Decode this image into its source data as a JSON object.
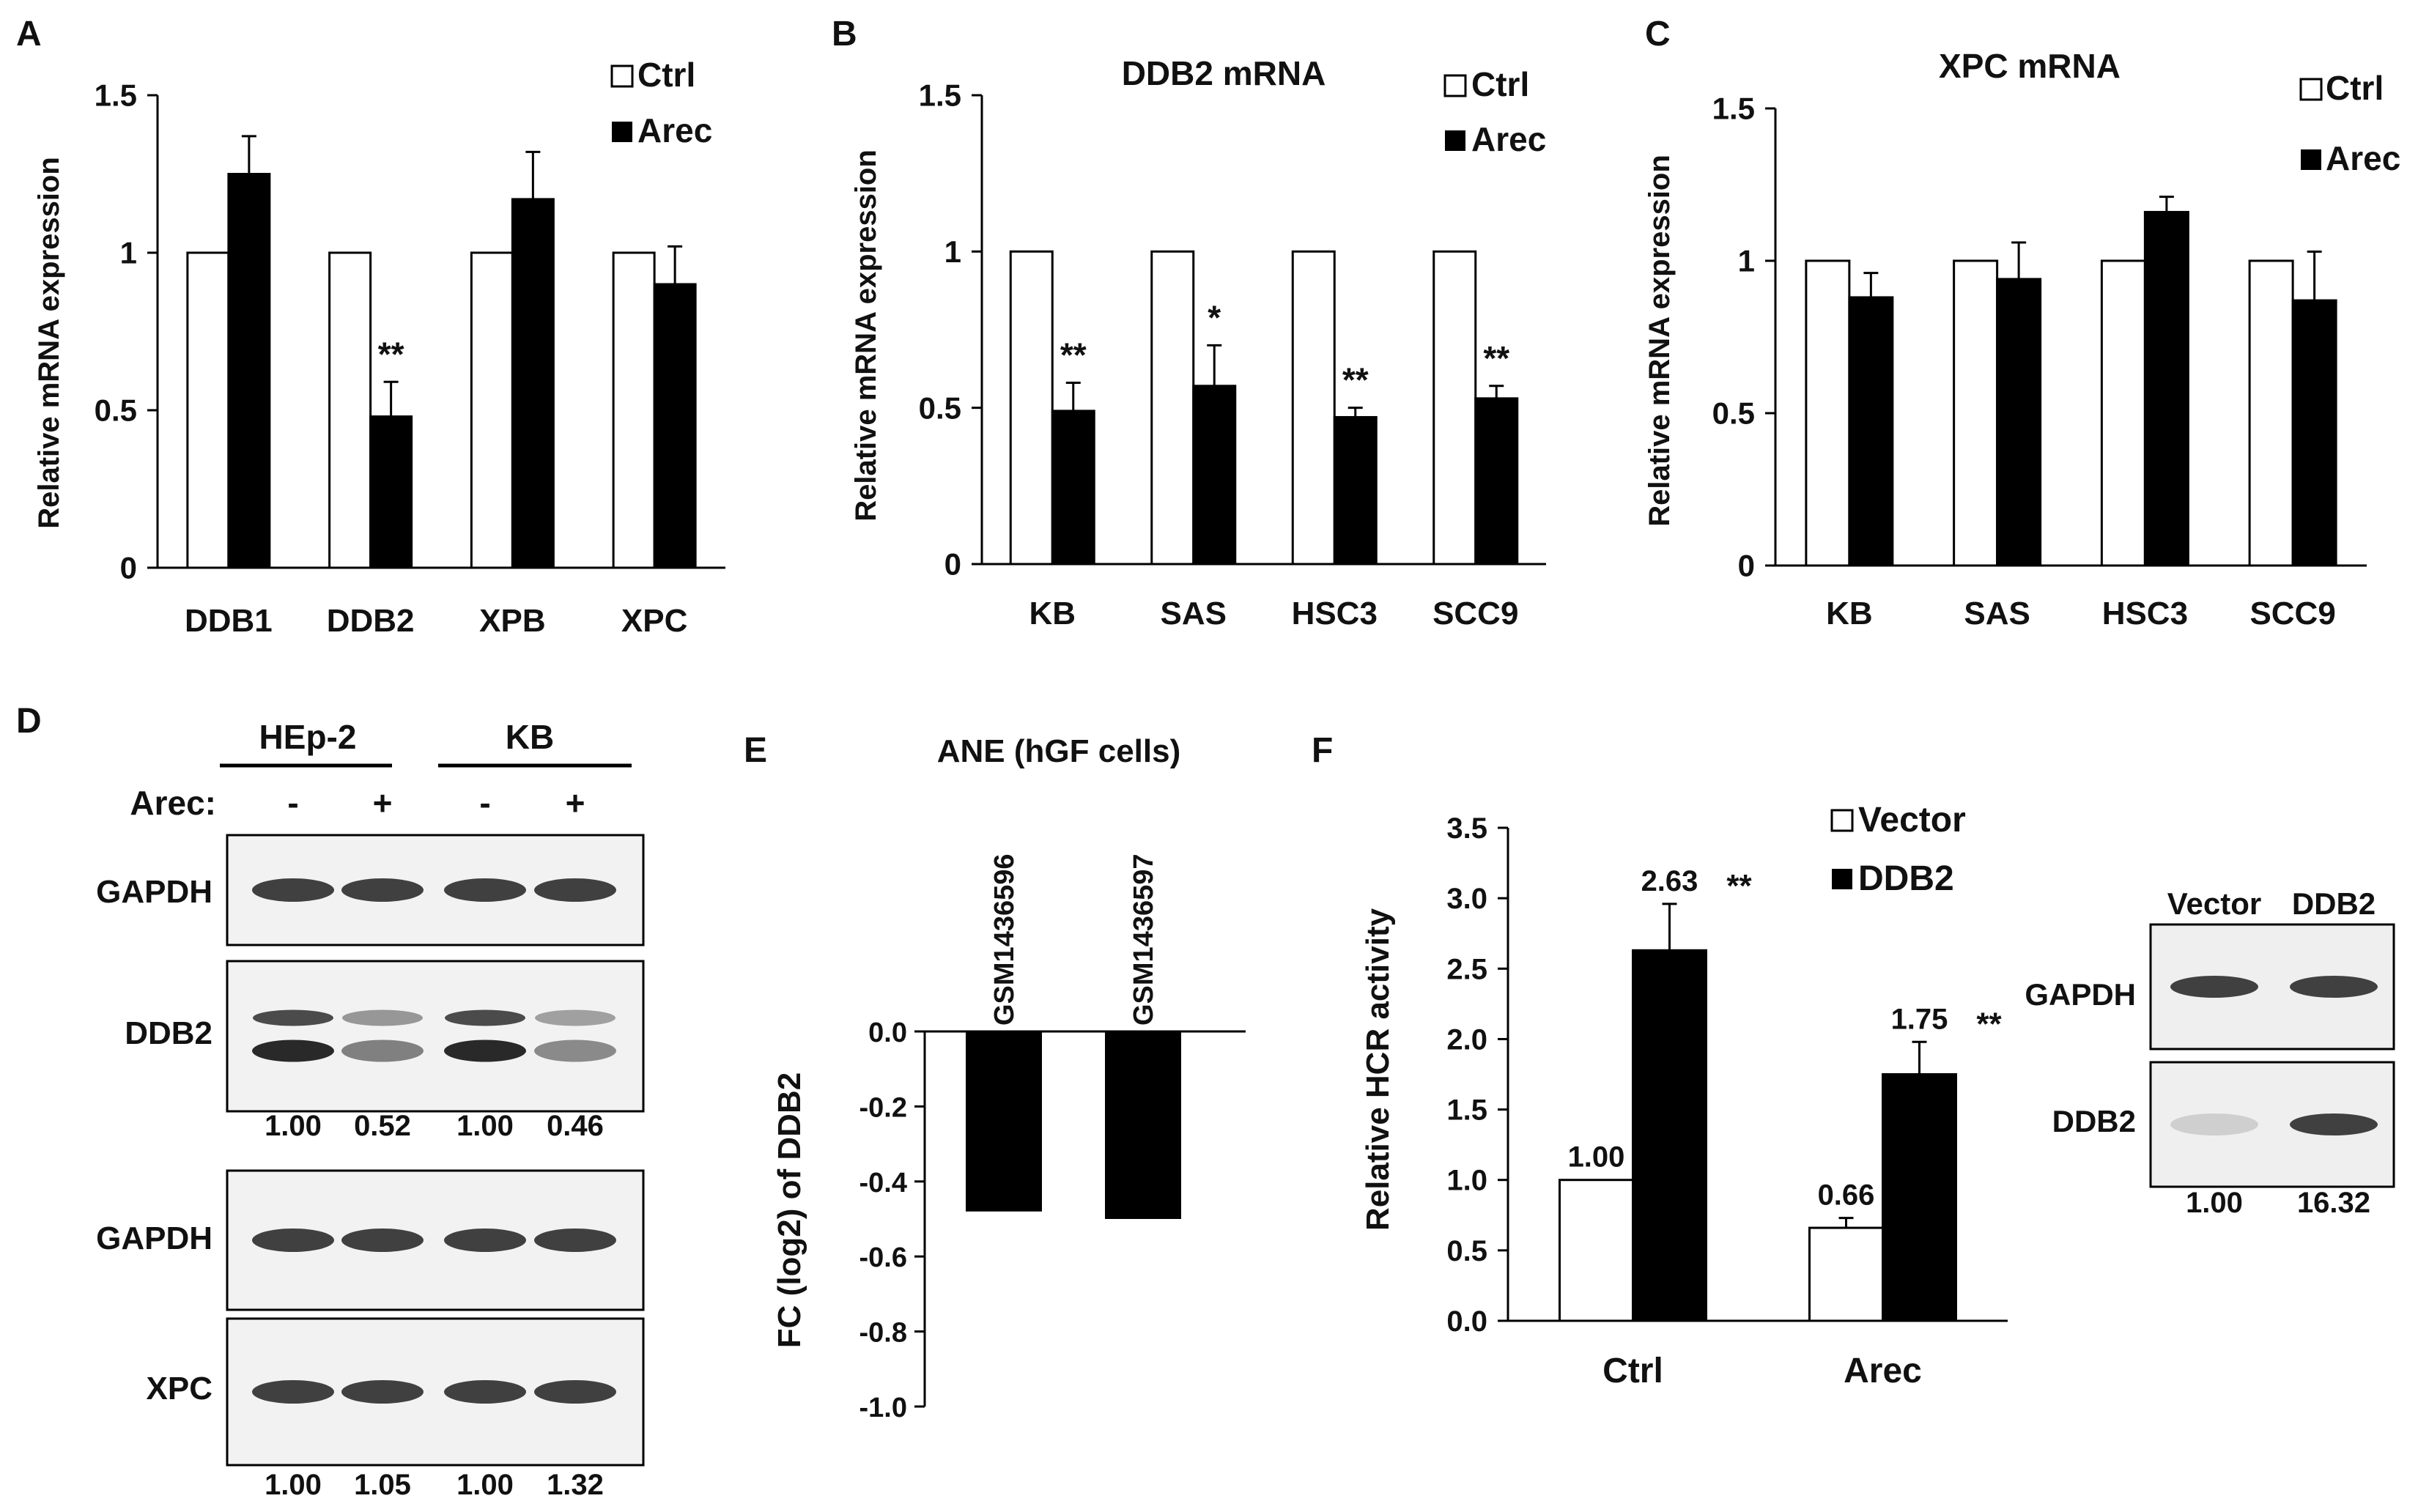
{
  "panel_labels": [
    "A",
    "B",
    "C",
    "D",
    "E",
    "F"
  ],
  "chart_data": [
    {
      "id": "A",
      "type": "bar",
      "title": "",
      "xlabel": "",
      "ylabel": "Relative mRNA expression",
      "ylim": [
        0,
        1.5
      ],
      "ticks": [
        0,
        0.5,
        1,
        1.5
      ],
      "tick_labels": [
        "0",
        "0.5",
        "1",
        "1.5"
      ],
      "categories": [
        "DDB1",
        "DDB2",
        "XPB",
        "XPC"
      ],
      "series": [
        {
          "name": "Ctrl",
          "color": "#ffffff",
          "values": [
            1,
            1,
            1,
            1
          ],
          "errors": [
            0,
            0,
            0,
            0
          ]
        },
        {
          "name": "Arec",
          "color": "#000000",
          "values": [
            1.25,
            0.48,
            1.17,
            0.9
          ],
          "errors": [
            0.12,
            0.11,
            0.15,
            0.12
          ]
        }
      ],
      "annotations": [
        "",
        "**",
        "",
        ""
      ],
      "legend": "top-right"
    },
    {
      "id": "B",
      "type": "bar",
      "title": "DDB2 mRNA",
      "xlabel": "",
      "ylabel": "Relative mRNA expression",
      "ylim": [
        0,
        1.5
      ],
      "ticks": [
        0,
        0.5,
        1,
        1.5
      ],
      "tick_labels": [
        "0",
        "0.5",
        "1",
        "1.5"
      ],
      "categories": [
        "KB",
        "SAS",
        "HSC3",
        "SCC9"
      ],
      "series": [
        {
          "name": "Ctrl",
          "color": "#ffffff",
          "values": [
            1,
            1,
            1,
            1
          ],
          "errors": [
            0,
            0,
            0,
            0
          ]
        },
        {
          "name": "Arec",
          "color": "#000000",
          "values": [
            0.49,
            0.57,
            0.47,
            0.53
          ],
          "errors": [
            0.09,
            0.13,
            0.03,
            0.04
          ]
        }
      ],
      "annotations": [
        "**",
        "*",
        "**",
        "**"
      ],
      "legend": "top-right"
    },
    {
      "id": "C",
      "type": "bar",
      "title": "XPC mRNA",
      "xlabel": "",
      "ylabel": "Relative mRNA expression",
      "ylim": [
        0,
        1.5
      ],
      "ticks": [
        0,
        0.5,
        1,
        1.5
      ],
      "tick_labels": [
        "0",
        "0.5",
        "1",
        "1.5"
      ],
      "categories": [
        "KB",
        "SAS",
        "HSC3",
        "SCC9"
      ],
      "series": [
        {
          "name": "Ctrl",
          "color": "#ffffff",
          "values": [
            1,
            1,
            1,
            1
          ],
          "errors": [
            0,
            0,
            0,
            0
          ]
        },
        {
          "name": "Arec",
          "color": "#000000",
          "values": [
            0.88,
            0.94,
            1.16,
            0.87
          ],
          "errors": [
            0.08,
            0.12,
            0.05,
            0.16
          ]
        }
      ],
      "annotations": [
        "",
        "",
        "",
        ""
      ],
      "legend": "top-right"
    },
    {
      "id": "E",
      "type": "bar",
      "title": "ANE (hGF cells)",
      "xlabel": "",
      "ylabel": "FC (log2) of DDB2",
      "ylim": [
        -1.0,
        0.0
      ],
      "ticks": [
        0,
        -0.2,
        -0.4,
        -0.6,
        -0.8,
        -1.0
      ],
      "tick_labels": [
        "0.0",
        "-0.2",
        "-0.4",
        "-0.6",
        "-0.8",
        "-1.0"
      ],
      "categories": [
        "GSM1436596",
        "GSM1436597"
      ],
      "values": [
        -0.48,
        -0.5
      ],
      "legend": "none"
    },
    {
      "id": "F",
      "type": "bar",
      "title": "",
      "xlabel": "",
      "ylabel": "Relative HCR activity",
      "ylim": [
        0,
        3.5
      ],
      "ticks": [
        0,
        0.5,
        1,
        1.5,
        2,
        2.5,
        3,
        3.5
      ],
      "tick_labels": [
        "0.0",
        "0.5",
        "1.0",
        "1.5",
        "2.0",
        "2.5",
        "3.0",
        "3.5"
      ],
      "categories": [
        "Ctrl",
        "Arec"
      ],
      "series": [
        {
          "name": "Vector",
          "color": "#ffffff",
          "values": [
            1.0,
            0.66
          ],
          "errors": [
            0,
            0.07
          ],
          "labels": [
            "1.00",
            "0.66"
          ]
        },
        {
          "name": "DDB2",
          "color": "#000000",
          "values": [
            2.63,
            1.75
          ],
          "errors": [
            0.33,
            0.23
          ],
          "labels": [
            "2.63",
            "1.75"
          ]
        }
      ],
      "annotations": [
        "**",
        "**"
      ],
      "legend": "top"
    }
  ],
  "western_blots": {
    "D": {
      "groups": [
        "HEp-2",
        "KB"
      ],
      "treatment_label": "Arec:",
      "lane_treatments": [
        "-",
        "+",
        "-",
        "+"
      ],
      "blots": [
        {
          "protein": "GAPDH",
          "bands": 1,
          "intensity": [
            1,
            1,
            1,
            1
          ]
        },
        {
          "protein": "DDB2",
          "bands": 2,
          "intensity": [
            1.0,
            0.52,
            1.0,
            0.46
          ],
          "quant": [
            "1.00",
            "0.52",
            "1.00",
            "0.46"
          ]
        },
        {
          "protein": "GAPDH",
          "bands": 1,
          "intensity": [
            1,
            1,
            1,
            1
          ]
        },
        {
          "protein": "XPC",
          "bands": 1,
          "intensity": [
            1.0,
            1.05,
            1.0,
            1.32
          ],
          "quant": [
            "1.00",
            "1.05",
            "1.00",
            "1.32"
          ]
        }
      ]
    },
    "F": {
      "lanes": [
        "Vector",
        "DDB2"
      ],
      "blots": [
        {
          "protein": "GAPDH",
          "bands": 1,
          "intensity": [
            1,
            1
          ]
        },
        {
          "protein": "DDB2",
          "bands": 1,
          "intensity": [
            0.25,
            1.0
          ],
          "quant": [
            "1.00",
            "16.32"
          ]
        }
      ]
    }
  }
}
